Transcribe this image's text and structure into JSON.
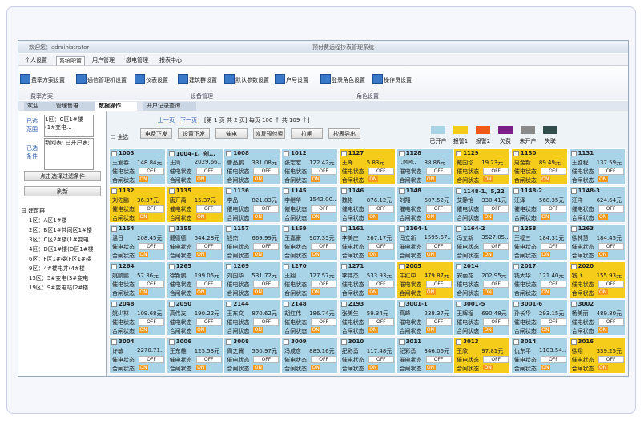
{
  "header": {
    "welcome": "欢迎您：administrator",
    "title": "预付费远程抄表管理系统"
  },
  "menu": [
    "个人设置",
    "系统配置",
    "用户管理",
    "缴电管理",
    "报表中心"
  ],
  "toolbar": {
    "items": [
      "费率方案设置",
      "通信管理机设置",
      "仪表设置",
      "建筑群设置",
      "默认参数设置",
      "户号设置",
      "登录角色设置",
      "操作员设置"
    ],
    "groups": [
      "费率方案",
      "设备管理",
      "角色设置"
    ]
  },
  "tabs": [
    "欢迎",
    "管理售电",
    "数据操作",
    "开户记录查询"
  ],
  "sidebar": {
    "range_label": "已选范围",
    "range_text": "1区：C区1#楼(1#变电...",
    "condition_label": "已选条件",
    "condition_text": "新网表: 已开户表;",
    "filter_button": "点击选择过滤条件",
    "refresh_button": "刷新",
    "tree_root": "建筑群",
    "tree": [
      "1区：A区1#楼",
      "2区：B区1#共同区1#楼",
      "3区：C区2#楼(1#变电",
      "4区：D区1#楼(D区1#楼",
      "6区：F区1#楼(F区1#楼",
      "9区：4#楼电井(4#楼",
      "15区：5#变电(3#变电",
      "19区：9#变电站(2#楼"
    ]
  },
  "pager": {
    "prev": "上一页",
    "next": "下一页",
    "text": "[第 1 页 共 2 页] 每页 100 个 共 109 个]"
  },
  "actions": [
    "电费下发",
    "设置下发",
    "催电",
    "恢复预付费",
    "拉闸",
    "抄表导出"
  ],
  "select_all": "全选",
  "legend": [
    {
      "label": "已开户",
      "color": "#a9d3e6"
    },
    {
      "label": "报警1",
      "color": "#f5cc1a"
    },
    {
      "label": "报警2",
      "color": "#ee5a1c"
    },
    {
      "label": "欠费",
      "color": "#7b1f87"
    },
    {
      "label": "未开户",
      "color": "#8a8a8a"
    },
    {
      "label": "失联",
      "color": "#2f4d4a"
    }
  ],
  "tile_labels": {
    "urge": "催电状态",
    "close": "合闸状态",
    "off": "OFF",
    "on": "ON"
  },
  "tiles": [
    {
      "id": "1003",
      "name": "王爱春",
      "amount": "148.84元",
      "color": "#a9d3e6"
    },
    {
      "id": "1004-1、创...",
      "name": "王简",
      "amount": "2029.66..",
      "color": "#a9d3e6"
    },
    {
      "id": "1008",
      "name": "曹品鹏",
      "amount": "331.08元",
      "color": "#a9d3e6"
    },
    {
      "id": "1012",
      "name": "张宏宏",
      "amount": "122.42元",
      "color": "#a9d3e6"
    },
    {
      "id": "1127",
      "name": "王峰",
      "amount": "5.83元",
      "color": "#f5cc1a"
    },
    {
      "id": "1128",
      "name": "..MM..",
      "amount": "88.86元",
      "color": "#a9d3e6"
    },
    {
      "id": "1129",
      "name": "戴国珍",
      "amount": "19.23元",
      "color": "#f5cc1a"
    },
    {
      "id": "1130",
      "name": "周金新",
      "amount": "89.49元",
      "color": "#f5cc1a"
    },
    {
      "id": "1131",
      "name": "王胜程",
      "amount": "137.59元",
      "color": "#a9d3e6"
    },
    {
      "id": "1132",
      "name": "刘佐鹏",
      "amount": "36.37元",
      "color": "#f5cc1a"
    },
    {
      "id": "1135",
      "name": "唐开禹",
      "amount": "15.37元",
      "color": "#f5cc1a"
    },
    {
      "id": "1136",
      "name": "李品",
      "amount": "821.83元",
      "color": "#a9d3e6"
    },
    {
      "id": "1145",
      "name": "李继华",
      "amount": "1542.00..",
      "color": "#a9d3e6"
    },
    {
      "id": "1146",
      "name": "魏彬",
      "amount": "876.12元",
      "color": "#a9d3e6"
    },
    {
      "id": "1148",
      "name": "刘翔",
      "amount": "607.52元",
      "color": "#a9d3e6"
    },
    {
      "id": "1148-1、5,22",
      "name": "艾静怡",
      "amount": "330.41元",
      "color": "#a9d3e6"
    },
    {
      "id": "1148-2",
      "name": "汪泽",
      "amount": "568.35元",
      "color": "#a9d3e6"
    },
    {
      "id": "1148-3",
      "name": "汪洋",
      "amount": "624.64元",
      "color": "#a9d3e6"
    },
    {
      "id": "1154",
      "name": "温日",
      "amount": "208.45元",
      "color": "#a9d3e6"
    },
    {
      "id": "1155",
      "name": "戴德德",
      "amount": "544.28元",
      "color": "#a9d3e6"
    },
    {
      "id": "1157",
      "name": "钱杰",
      "amount": "669.99元",
      "color": "#a9d3e6"
    },
    {
      "id": "1159",
      "name": "王嘉豪",
      "amount": "907.35元",
      "color": "#a9d3e6"
    },
    {
      "id": "1161",
      "name": "李美庄",
      "amount": "267.17元",
      "color": "#a9d3e6"
    },
    {
      "id": "1164-1",
      "name": "冯立新",
      "amount": "1595.67..",
      "color": "#a9d3e6"
    },
    {
      "id": "1164-2",
      "name": "冯立新",
      "amount": "3527.05..",
      "color": "#a9d3e6"
    },
    {
      "id": "1258",
      "name": "王福三",
      "amount": "184.31元",
      "color": "#a9d3e6"
    },
    {
      "id": "1263",
      "name": "徐林慧",
      "amount": "184.45元",
      "color": "#a9d3e6"
    },
    {
      "id": "1264",
      "name": "姚鹏鹏",
      "amount": "57.36元",
      "color": "#a9d3e6"
    },
    {
      "id": "1265",
      "name": "徐新鹏",
      "amount": "199.05元",
      "color": "#a9d3e6"
    },
    {
      "id": "1269",
      "name": "刘国华",
      "amount": "531.72元",
      "color": "#a9d3e6"
    },
    {
      "id": "1270",
      "name": "王翔",
      "amount": "127.57元",
      "color": "#a9d3e6"
    },
    {
      "id": "1271",
      "name": "李伟杰",
      "amount": "533.93元",
      "color": "#a9d3e6"
    },
    {
      "id": "2005",
      "name": "牛红中",
      "amount": "479.87元",
      "color": "#f5cc1a"
    },
    {
      "id": "2014",
      "name": "安丽花",
      "amount": "202.95元",
      "color": "#a9d3e6"
    },
    {
      "id": "2017",
      "name": "钱大华",
      "amount": "121.40元",
      "color": "#a9d3e6"
    },
    {
      "id": "2020",
      "name": "钱飞",
      "amount": "155.93元",
      "color": "#f5cc1a"
    },
    {
      "id": "2048",
      "name": "姚少林",
      "amount": "109.68元",
      "color": "#a9d3e6"
    },
    {
      "id": "2050",
      "name": "高伟友",
      "amount": "190.22元",
      "color": "#a9d3e6"
    },
    {
      "id": "2144",
      "name": "王东文",
      "amount": "870.62元",
      "color": "#a9d3e6"
    },
    {
      "id": "2148",
      "name": "胡红伟",
      "amount": "186.74元",
      "color": "#a9d3e6"
    },
    {
      "id": "2193",
      "name": "张美生",
      "amount": "59.34元",
      "color": "#a9d3e6"
    },
    {
      "id": "3001-1",
      "name": "高峰",
      "amount": "238.37元",
      "color": "#a9d3e6"
    },
    {
      "id": "3001-5",
      "name": "王辉程",
      "amount": "690.48元",
      "color": "#a9d3e6"
    },
    {
      "id": "3001-6",
      "name": "孙长华",
      "amount": "293.15元",
      "color": "#a9d3e6"
    },
    {
      "id": "3002",
      "name": "杨美丽",
      "amount": "489.80元",
      "color": "#a9d3e6"
    },
    {
      "id": "3004",
      "name": "许敏",
      "amount": "2270.71..",
      "color": "#a9d3e6"
    },
    {
      "id": "3006",
      "name": "王东雄",
      "amount": "125.53元",
      "color": "#a9d3e6"
    },
    {
      "id": "3008",
      "name": "周之冀",
      "amount": "550.97元",
      "color": "#a9d3e6"
    },
    {
      "id": "3009",
      "name": "冯成彦",
      "amount": "885.16元",
      "color": "#a9d3e6"
    },
    {
      "id": "3010",
      "name": "纪彩勇",
      "amount": "117.48元",
      "color": "#a9d3e6"
    },
    {
      "id": "3011",
      "name": "纪彩勇",
      "amount": "346.06元",
      "color": "#a9d3e6"
    },
    {
      "id": "3013",
      "name": "王欣",
      "amount": "97.81元",
      "color": "#f5cc1a"
    },
    {
      "id": "3014",
      "name": "仇东平",
      "amount": "1103.54..",
      "color": "#a9d3e6"
    },
    {
      "id": "3016",
      "name": "徐翔",
      "amount": "339.25元",
      "color": "#f5cc1a"
    }
  ]
}
